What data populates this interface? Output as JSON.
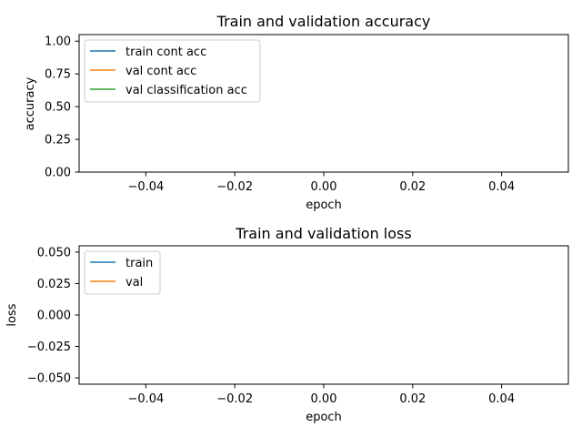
{
  "chart_data": [
    {
      "type": "line",
      "title": "Train and validation accuracy",
      "xlabel": "epoch",
      "ylabel": "accuracy",
      "xlim": [
        -0.055,
        0.055
      ],
      "ylim": [
        0.0,
        1.05
      ],
      "x_ticks": [
        -0.04,
        -0.02,
        0.0,
        0.02,
        0.04
      ],
      "x_tick_labels": [
        "−0.04",
        "−0.02",
        "0.00",
        "0.02",
        "0.04"
      ],
      "y_ticks": [
        0.0,
        0.25,
        0.5,
        0.75,
        1.0
      ],
      "y_tick_labels": [
        "0.00",
        "0.25",
        "0.50",
        "0.75",
        "1.00"
      ],
      "grid": false,
      "legend_position": "upper-left",
      "series": [
        {
          "name": "train cont acc",
          "color": "#1f77b4",
          "x": [],
          "y": []
        },
        {
          "name": "val cont acc",
          "color": "#ff7f0e",
          "x": [],
          "y": []
        },
        {
          "name": "val classification acc",
          "color": "#2ca02c",
          "x": [],
          "y": []
        }
      ]
    },
    {
      "type": "line",
      "title": "Train and validation loss",
      "xlabel": "epoch",
      "ylabel": "loss",
      "xlim": [
        -0.055,
        0.055
      ],
      "ylim": [
        -0.055,
        0.055
      ],
      "x_ticks": [
        -0.04,
        -0.02,
        0.0,
        0.02,
        0.04
      ],
      "x_tick_labels": [
        "−0.04",
        "−0.02",
        "0.00",
        "0.02",
        "0.04"
      ],
      "y_ticks": [
        -0.05,
        -0.025,
        0.0,
        0.025,
        0.05
      ],
      "y_tick_labels": [
        "−0.050",
        "−0.025",
        "0.000",
        "0.025",
        "0.050"
      ],
      "grid": false,
      "legend_position": "upper-left",
      "series": [
        {
          "name": "train",
          "color": "#1f77b4",
          "x": [],
          "y": []
        },
        {
          "name": "val",
          "color": "#ff7f0e",
          "x": [],
          "y": []
        }
      ]
    }
  ]
}
